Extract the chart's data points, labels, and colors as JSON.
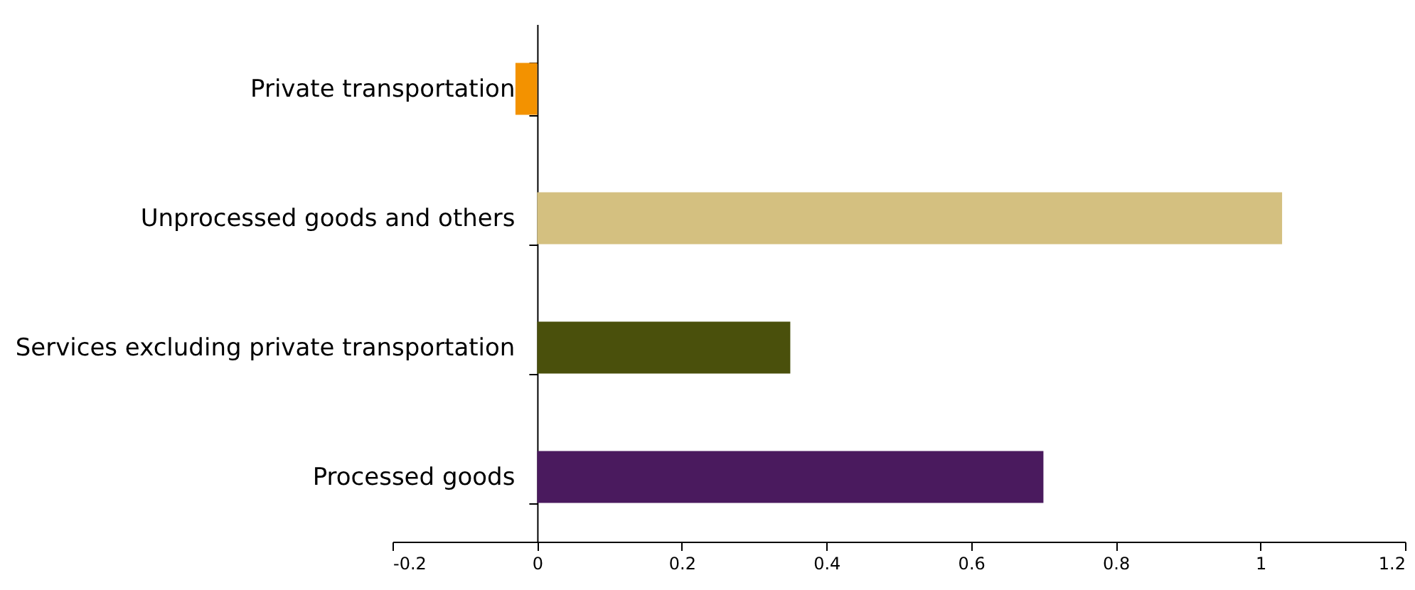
{
  "chart_data": {
    "type": "bar",
    "orientation": "horizontal",
    "categories": [
      "Private transportation",
      "Unprocessed goods and others",
      "Services excluding private transportation",
      "Processed goods"
    ],
    "values": [
      -0.03,
      1.03,
      0.35,
      0.7
    ],
    "colors": [
      "#f39200",
      "#d4c080",
      "#4a500c",
      "#4a1a5e"
    ],
    "xlim": [
      -0.2,
      1.2
    ],
    "xticks": [
      -0.2,
      0,
      0.2,
      0.4,
      0.6,
      0.8,
      1,
      1.2
    ],
    "grid": false
  }
}
